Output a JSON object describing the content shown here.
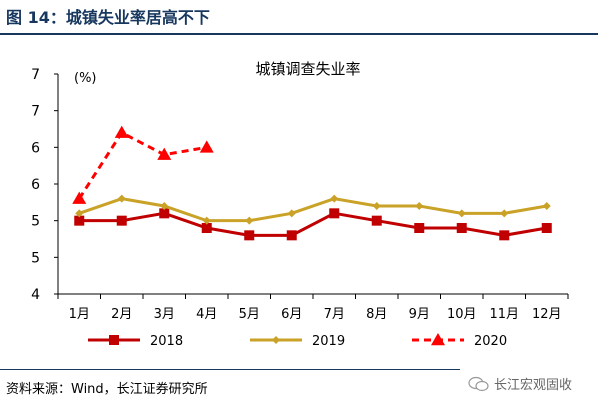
{
  "figure": {
    "title": "图 14：城镇失业率居高不下",
    "source": "资料来源：Wind，长江证券研究所",
    "watermark": "长江宏观固收"
  },
  "chart_data": {
    "type": "line",
    "title": "城镇调查失业率",
    "ylabel": "(%)",
    "ylim": [
      4,
      7
    ],
    "yticks": [
      4,
      4.5,
      5,
      5.5,
      6,
      6.5,
      7
    ],
    "ytick_labels": [
      "4",
      "5",
      "5",
      "6",
      "6",
      "7",
      "7"
    ],
    "categories": [
      "1月",
      "2月",
      "3月",
      "4月",
      "5月",
      "6月",
      "7月",
      "8月",
      "9月",
      "10月",
      "11月",
      "12月"
    ],
    "series": [
      {
        "name": "2018",
        "color": "#c00000",
        "marker": "square",
        "dash": false,
        "values": [
          5.0,
          5.0,
          5.1,
          4.9,
          4.8,
          4.8,
          5.1,
          5.0,
          4.9,
          4.9,
          4.8,
          4.9
        ]
      },
      {
        "name": "2019",
        "color": "#c9a227",
        "marker": "diamond",
        "dash": false,
        "values": [
          5.1,
          5.3,
          5.2,
          5.0,
          5.0,
          5.1,
          5.3,
          5.2,
          5.2,
          5.1,
          5.1,
          5.2
        ]
      },
      {
        "name": "2020",
        "color": "#ff0000",
        "marker": "triangle",
        "dash": true,
        "values": [
          5.3,
          6.2,
          5.9,
          6.0,
          null,
          null,
          null,
          null,
          null,
          null,
          null,
          null
        ]
      }
    ],
    "legend_position": "bottom"
  }
}
